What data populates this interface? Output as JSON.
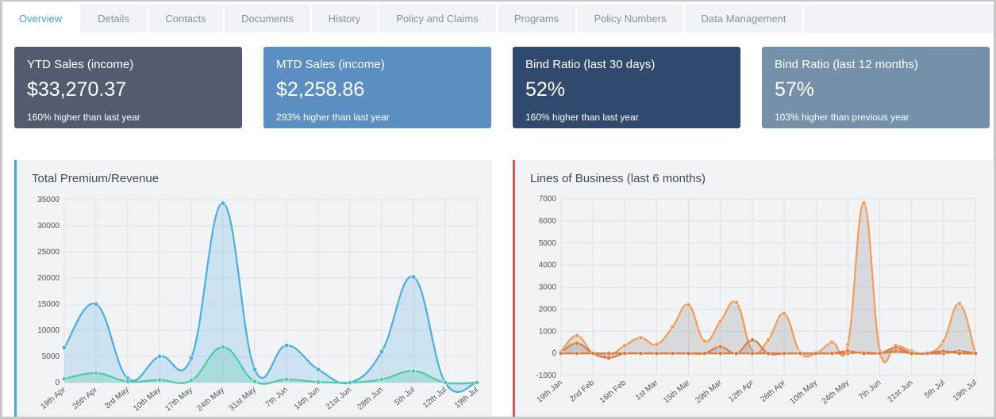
{
  "tabs": [
    {
      "label": "Overview",
      "active": true
    },
    {
      "label": "Details"
    },
    {
      "label": "Contacts"
    },
    {
      "label": "Documents"
    },
    {
      "label": "History"
    },
    {
      "label": "Policy and Claims"
    },
    {
      "label": "Programs"
    },
    {
      "label": "Policy Numbers"
    },
    {
      "label": "Data Management"
    }
  ],
  "cards": [
    {
      "title": "YTD Sales (income)",
      "value": "$33,270.37",
      "sub": "160% higher than last year",
      "color": "#535b6f"
    },
    {
      "title": "MTD Sales (income)",
      "value": "$2,258.86",
      "sub": "293% higher than last year",
      "color": "#5b8fc2"
    },
    {
      "title": "Bind Ratio (last 30 days)",
      "value": "52%",
      "sub": "160% higher than last year",
      "color": "#2f4a6c"
    },
    {
      "title": "Bind Ratio (last 12 months)",
      "value": "57%",
      "sub": "103% higher than previous year",
      "color": "#7591a9"
    }
  ],
  "colors": {
    "panel_left_accent": "#3fa9e0",
    "panel_right_accent": "#e0525e",
    "premium_series": "#4aaee3",
    "revenue_series": "#4ecaa8",
    "lob_series": "#f59a5a",
    "lob_series_dark": "#e07a3e"
  },
  "chart_data": [
    {
      "type": "area",
      "title": "Total Premium/Revenue",
      "categories": [
        "19th Apr",
        "26th Apr",
        "3rd May",
        "10th May",
        "17th May",
        "24th May",
        "31st May",
        "7th Jun",
        "14th Jun",
        "21st Jun",
        "28th Jun",
        "5th Jul",
        "12th Jul",
        "19th Jul"
      ],
      "ylim": [
        0,
        35000
      ],
      "yticks": [
        "0",
        "5000",
        "10000",
        "15000",
        "20000",
        "25000",
        "30000",
        "35000"
      ],
      "grid": true,
      "series": [
        {
          "values": [
            6700,
            15000,
            800,
            5000,
            4700,
            34300,
            2500,
            7100,
            2500,
            0,
            5900,
            20200,
            0,
            0
          ]
        },
        {
          "values": [
            700,
            1800,
            200,
            500,
            400,
            6800,
            200,
            600,
            100,
            0,
            600,
            2200,
            0,
            0
          ]
        }
      ]
    },
    {
      "type": "area",
      "title": "Lines of Business (last 6 months)",
      "categories": [
        "19th Jan",
        "",
        "2nd Feb",
        "",
        "16th Feb",
        "",
        "1st Mar",
        "",
        "15th Mar",
        "",
        "29th Mar",
        "",
        "12th Apr",
        "",
        "26th Apr",
        "",
        "10th May",
        "",
        "24th May",
        "",
        "7th Jun",
        "",
        "21st Jun",
        "",
        "5th Jul",
        "",
        "19th Jul"
      ],
      "ylim": [
        -1000,
        7000
      ],
      "yticks": [
        "-1000",
        "0",
        "1000",
        "2000",
        "3000",
        "4000",
        "5000",
        "6000",
        "7000"
      ],
      "grid": true,
      "series": [
        {
          "values": [
            100,
            800,
            0,
            -100,
            350,
            700,
            400,
            1200,
            2200,
            550,
            1450,
            2300,
            100,
            600,
            1800,
            50,
            0,
            500,
            400,
            6800,
            100,
            350,
            100,
            0,
            550,
            2250,
            0
          ]
        },
        {
          "values": [
            50,
            450,
            0,
            -200,
            0,
            0,
            0,
            0,
            0,
            0,
            300,
            0,
            600,
            0,
            0,
            0,
            0,
            0,
            0,
            50,
            0,
            250,
            0,
            0,
            0,
            100,
            0
          ]
        },
        {
          "values": [
            0,
            0,
            0,
            0,
            0,
            0,
            0,
            0,
            0,
            0,
            0,
            0,
            0,
            0,
            0,
            0,
            0,
            0,
            100,
            0,
            0,
            100,
            0,
            0,
            100,
            0,
            0
          ]
        }
      ]
    }
  ]
}
